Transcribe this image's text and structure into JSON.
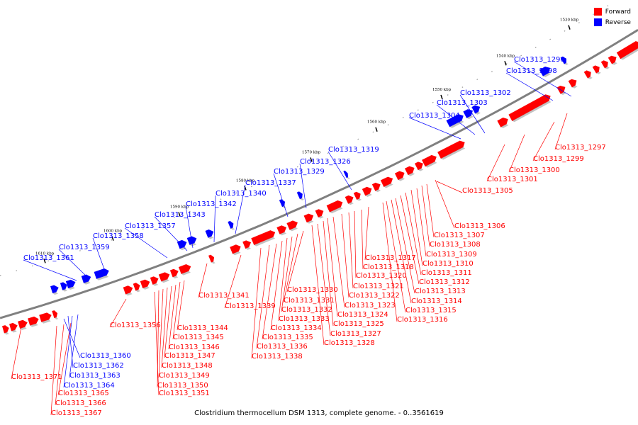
{
  "caption": "Clostridium thermocellum DSM 1313, complete genome. - 0..3561619",
  "legend": [
    {
      "label": "Forward",
      "color": "#ff0000"
    },
    {
      "label": "Reverse",
      "color": "#0000ff"
    }
  ],
  "colors": {
    "forward": "#ff0000",
    "reverse": "#0000ff",
    "axis": "#808080"
  },
  "scale_labels": [
    "1530 kbp",
    "1540 kbp",
    "1550 kbp",
    "1560 kbp",
    "1570 kbp",
    "1580 kbp",
    "1590 kbp",
    "1600 kbp",
    "1610 kbp"
  ],
  "forward_labels": [
    "Clo1313_1297",
    "Clo1313_1299",
    "Clo1313_1300",
    "Clo1313_1301",
    "Clo1313_1305",
    "Clo1313_1306",
    "Clo1313_1307",
    "Clo1313_1308",
    "Clo1313_1309",
    "Clo1313_1310",
    "Clo1313_1311",
    "Clo1313_1312",
    "Clo1313_1313",
    "Clo1313_1314",
    "Clo1313_1315",
    "Clo1313_1316",
    "Clo1313_1317",
    "Clo1313_1318",
    "Clo1313_1320",
    "Clo1313_1321",
    "Clo1313_1322",
    "Clo1313_1323",
    "Clo1313_1324",
    "Clo1313_1325",
    "Clo1313_1327",
    "Clo1313_1328",
    "Clo1313_1330",
    "Clo1313_1331",
    "Clo1313_1332",
    "Clo1313_1333",
    "Clo1313_1334",
    "Clo1313_1335",
    "Clo1313_1336",
    "Clo1313_1338",
    "Clo1313_1339",
    "Clo1313_1341",
    "Clo1313_1344",
    "Clo1313_1345",
    "Clo1313_1346",
    "Clo1313_1347",
    "Clo1313_1348",
    "Clo1313_1349",
    "Clo1313_1350",
    "Clo1313_1351",
    "Clo1313_1356",
    "Clo1313_1365",
    "Clo1313_1366",
    "Clo1313_1367",
    "Clo1313_1371"
  ],
  "reverse_labels": [
    "Clo1313_1296",
    "Clo1313_1298",
    "Clo1313_1302",
    "Clo1313_1303",
    "Clo1313_1304",
    "Clo1313_1319",
    "Clo1313_1326",
    "Clo1313_1329",
    "Clo1313_1337",
    "Clo1313_1340",
    "Clo1313_1342",
    "Clo1313_1343",
    "Clo1313_1357",
    "Clo1313_1358",
    "Clo1313_1359",
    "Clo1313_1361",
    "Clo1313_1360",
    "Clo1313_1362",
    "Clo1313_1363",
    "Clo1313_1364"
  ]
}
